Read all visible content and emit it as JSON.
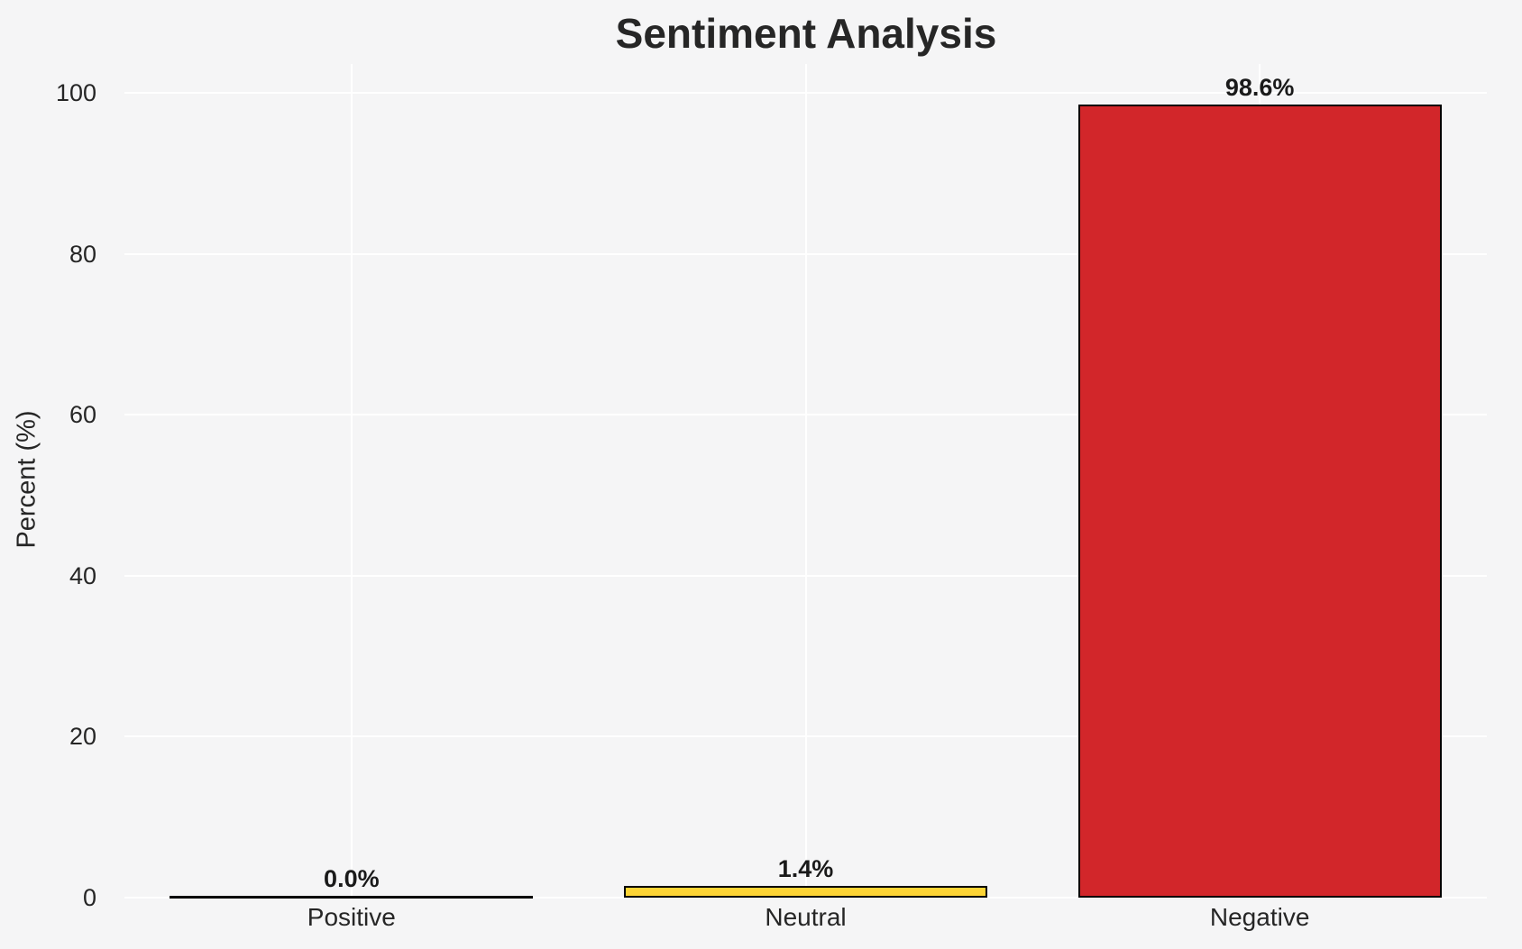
{
  "chart_data": {
    "type": "bar",
    "title": "Sentiment Analysis",
    "xlabel": "",
    "ylabel": "Percent (%)",
    "categories": [
      "Positive",
      "Neutral",
      "Negative"
    ],
    "values": [
      0.0,
      1.4,
      98.6
    ],
    "value_labels": [
      "0.0%",
      "1.4%",
      "98.6%"
    ],
    "bar_colors": [
      null,
      "#fdd435",
      "#d2262a"
    ],
    "bar_edge_color": "#000000",
    "yticks": [
      0,
      20,
      40,
      60,
      80,
      100
    ],
    "ylim": [
      0,
      103.5
    ],
    "grid": true,
    "grid_color": "#ffffff",
    "legend": null
  },
  "colors": {
    "figure_background": "#f5f5f6",
    "title_text": "#262626",
    "axis_text": "#262626",
    "value_label_text": "#1a1a1a"
  }
}
